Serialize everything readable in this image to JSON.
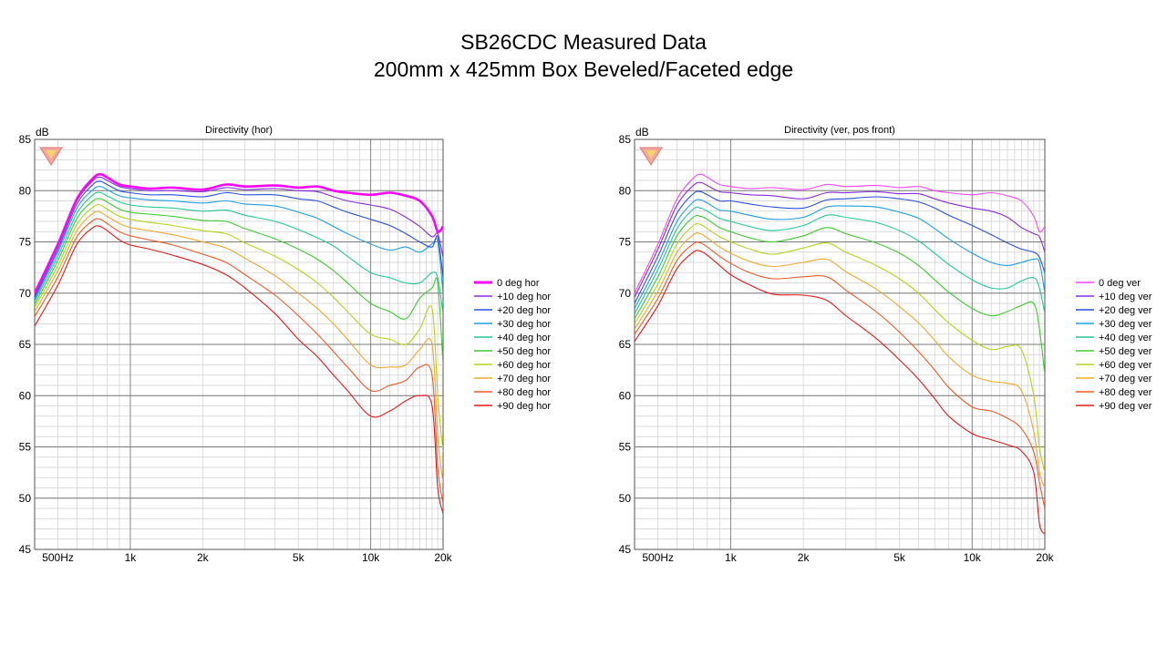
{
  "slide": {
    "title_line1": "SB26CDC Measured Data",
    "title_line2": "200mm x 425mm Box Beveled/Faceted  edge"
  },
  "chart_data": [
    {
      "type": "line",
      "title": "Directivity (hor)",
      "ylabel": "dB",
      "xscale": "log",
      "xlim": [
        400,
        20000
      ],
      "ylim": [
        45,
        85
      ],
      "x_tick_labels": [
        "500Hz",
        "1k",
        "2k",
        "5k",
        "10k",
        "20k"
      ],
      "x_tick_values": [
        500,
        1000,
        2000,
        5000,
        10000,
        20000
      ],
      "y_tick_labels": [
        "85",
        "80",
        "75",
        "70",
        "65",
        "60",
        "55",
        "50",
        "45"
      ],
      "y_tick_values": [
        85,
        80,
        75,
        70,
        65,
        60,
        55,
        50,
        45
      ],
      "grid": true,
      "legend_position": "right",
      "x": [
        400,
        500,
        600,
        700,
        750,
        800,
        900,
        1000,
        1200,
        1500,
        2000,
        2500,
        3000,
        4000,
        5000,
        6000,
        7000,
        8000,
        10000,
        12000,
        14000,
        16000,
        18000,
        19000,
        20000
      ],
      "series": [
        {
          "name": "0 deg hor",
          "color": "#ff00ff",
          "values": [
            70.0,
            74.8,
            79.2,
            81.2,
            81.6,
            81.3,
            80.6,
            80.4,
            80.2,
            80.3,
            80.1,
            80.6,
            80.4,
            80.5,
            80.3,
            80.4,
            80.0,
            79.8,
            79.6,
            79.8,
            79.5,
            79.0,
            77.5,
            76.0,
            76.5
          ]
        },
        {
          "name": "+10 deg hor",
          "color": "#8a2be2",
          "values": [
            69.8,
            74.6,
            79.0,
            81.0,
            81.3,
            81.0,
            80.4,
            80.2,
            80.0,
            80.0,
            79.9,
            80.3,
            80.1,
            80.2,
            80.0,
            79.9,
            79.4,
            79.0,
            78.6,
            78.2,
            77.4,
            76.5,
            75.5,
            75.8,
            73.5
          ]
        },
        {
          "name": "+20 deg hor",
          "color": "#2a50e0",
          "values": [
            69.6,
            74.3,
            78.7,
            80.6,
            80.9,
            80.6,
            80.0,
            79.8,
            79.6,
            79.6,
            79.4,
            79.8,
            79.6,
            79.6,
            79.2,
            79.0,
            78.4,
            77.9,
            77.2,
            76.6,
            75.8,
            75.0,
            74.5,
            75.5,
            71.5
          ]
        },
        {
          "name": "+30 deg hor",
          "color": "#1e9fe6",
          "values": [
            69.4,
            74.0,
            78.3,
            80.1,
            80.4,
            80.1,
            79.5,
            79.3,
            79.1,
            79.0,
            78.8,
            79.0,
            78.7,
            78.5,
            77.9,
            77.3,
            76.5,
            75.8,
            74.8,
            74.2,
            74.5,
            74.0,
            74.8,
            75.0,
            70.0
          ]
        },
        {
          "name": "+40 deg hor",
          "color": "#22c996",
          "values": [
            69.2,
            73.6,
            77.8,
            79.6,
            79.8,
            79.5,
            78.9,
            78.6,
            78.4,
            78.3,
            78.0,
            78.1,
            77.6,
            77.0,
            76.2,
            75.4,
            74.6,
            73.6,
            72.0,
            71.5,
            71.0,
            71.0,
            72.0,
            71.5,
            68.0
          ]
        },
        {
          "name": "+50 deg hor",
          "color": "#3dcc2e",
          "values": [
            68.9,
            73.2,
            77.3,
            79.0,
            79.2,
            78.9,
            78.2,
            77.9,
            77.7,
            77.5,
            77.1,
            77.0,
            76.3,
            75.3,
            74.3,
            73.3,
            72.2,
            71.0,
            69.0,
            68.2,
            67.5,
            69.5,
            70.5,
            71.0,
            63.0
          ]
        },
        {
          "name": "+60 deg hor",
          "color": "#b3d41a",
          "values": [
            68.6,
            72.7,
            76.7,
            78.4,
            78.6,
            78.2,
            77.5,
            77.2,
            76.9,
            76.6,
            76.1,
            75.8,
            74.9,
            73.6,
            72.3,
            71.0,
            69.6,
            68.2,
            66.0,
            65.5,
            65.0,
            66.5,
            68.5,
            60.0,
            54.5
          ]
        },
        {
          "name": "+70 deg hor",
          "color": "#f0a830",
          "values": [
            68.2,
            72.2,
            76.1,
            77.8,
            77.9,
            77.5,
            76.8,
            76.4,
            76.1,
            75.7,
            75.0,
            74.4,
            73.4,
            71.7,
            70.0,
            68.5,
            67.0,
            65.5,
            63.0,
            62.8,
            63.0,
            64.5,
            65.0,
            56.0,
            51.5
          ]
        },
        {
          "name": "+80 deg hor",
          "color": "#f05a28",
          "values": [
            67.7,
            71.6,
            75.5,
            77.1,
            77.2,
            76.8,
            76.0,
            75.6,
            75.2,
            74.7,
            73.8,
            73.0,
            71.8,
            69.8,
            67.8,
            66.0,
            64.3,
            62.8,
            60.5,
            61.0,
            61.5,
            62.8,
            62.0,
            53.0,
            49.5
          ]
        },
        {
          "name": "+90 deg hor",
          "color": "#e81818",
          "values": [
            66.8,
            70.8,
            74.8,
            76.4,
            76.5,
            76.1,
            75.2,
            74.7,
            74.3,
            73.7,
            72.8,
            71.8,
            70.5,
            68.0,
            65.5,
            63.8,
            62.0,
            60.5,
            58.0,
            58.5,
            59.5,
            60.0,
            59.0,
            51.0,
            48.5
          ]
        }
      ]
    },
    {
      "type": "line",
      "title": "Directivity (ver, pos front)",
      "ylabel": "dB",
      "xscale": "log",
      "xlim": [
        400,
        20000
      ],
      "ylim": [
        45,
        85
      ],
      "x_tick_labels": [
        "500Hz",
        "1k",
        "2k",
        "5k",
        "10k",
        "20k"
      ],
      "x_tick_values": [
        500,
        1000,
        2000,
        5000,
        10000,
        20000
      ],
      "y_tick_labels": [
        "85",
        "80",
        "75",
        "70",
        "65",
        "60",
        "55",
        "50",
        "45"
      ],
      "y_tick_values": [
        85,
        80,
        75,
        70,
        65,
        60,
        55,
        50,
        45
      ],
      "grid": true,
      "legend_position": "right",
      "x": [
        400,
        500,
        600,
        700,
        750,
        800,
        900,
        1000,
        1200,
        1500,
        2000,
        2500,
        3000,
        4000,
        5000,
        6000,
        7000,
        8000,
        10000,
        12000,
        14000,
        16000,
        18000,
        19000,
        20000
      ],
      "series": [
        {
          "name": "0 deg ver",
          "color": "#ff44ff",
          "values": [
            70.0,
            74.8,
            79.2,
            81.2,
            81.6,
            81.3,
            80.6,
            80.4,
            80.2,
            80.3,
            80.1,
            80.6,
            80.4,
            80.5,
            80.3,
            80.4,
            80.0,
            79.8,
            79.6,
            79.8,
            79.5,
            79.0,
            77.5,
            76.0,
            76.5
          ]
        },
        {
          "name": "+10 deg ver",
          "color": "#8a2be2",
          "values": [
            69.6,
            74.3,
            78.6,
            80.5,
            80.8,
            80.5,
            79.9,
            79.8,
            79.6,
            79.5,
            79.2,
            79.8,
            79.8,
            79.9,
            79.7,
            79.7,
            79.2,
            78.8,
            78.3,
            78.0,
            77.4,
            76.4,
            75.8,
            75.5,
            74.0
          ]
        },
        {
          "name": "+20 deg ver",
          "color": "#2a50e0",
          "values": [
            69.0,
            73.6,
            77.8,
            79.7,
            79.9,
            79.6,
            79.0,
            79.0,
            78.7,
            78.4,
            78.3,
            79.1,
            79.2,
            79.4,
            79.2,
            78.9,
            78.3,
            77.6,
            76.6,
            75.7,
            74.9,
            74.3,
            74.0,
            73.5,
            72.0
          ]
        },
        {
          "name": "+30 deg ver",
          "color": "#1e9fe6",
          "values": [
            68.5,
            72.9,
            77.0,
            78.9,
            79.1,
            78.8,
            78.1,
            78.0,
            77.6,
            77.2,
            77.4,
            78.4,
            78.5,
            78.4,
            77.9,
            77.3,
            76.3,
            75.3,
            73.9,
            73.0,
            72.7,
            73.0,
            73.3,
            73.0,
            70.0
          ]
        },
        {
          "name": "+40 deg ver",
          "color": "#22c996",
          "values": [
            68.0,
            72.3,
            76.3,
            78.2,
            78.3,
            78.0,
            77.3,
            77.0,
            76.5,
            76.1,
            76.6,
            77.6,
            77.4,
            76.9,
            76.1,
            75.1,
            73.9,
            72.8,
            71.3,
            70.5,
            70.5,
            71.2,
            71.5,
            70.5,
            68.0
          ]
        },
        {
          "name": "+50 deg ver",
          "color": "#3dcc2e",
          "values": [
            67.5,
            71.6,
            75.6,
            77.4,
            77.5,
            77.2,
            76.4,
            76.0,
            75.4,
            75.0,
            75.6,
            76.4,
            75.8,
            74.9,
            73.9,
            72.7,
            71.3,
            70.1,
            68.5,
            67.8,
            68.2,
            68.8,
            69.0,
            66.5,
            62.0
          ]
        },
        {
          "name": "+60 deg ver",
          "color": "#b3d41a",
          "values": [
            67.0,
            70.9,
            74.8,
            76.6,
            76.7,
            76.3,
            75.5,
            75.0,
            74.3,
            73.8,
            74.4,
            74.9,
            74.0,
            72.7,
            71.4,
            70.0,
            68.4,
            67.1,
            65.4,
            64.5,
            64.8,
            64.5,
            60.0,
            55.0,
            52.5
          ]
        },
        {
          "name": "+70 deg ver",
          "color": "#f0a830",
          "values": [
            66.5,
            70.2,
            74.0,
            75.7,
            75.8,
            75.4,
            74.5,
            73.9,
            73.1,
            72.6,
            73.0,
            73.3,
            72.1,
            70.4,
            68.7,
            67.1,
            65.4,
            63.8,
            62.0,
            61.4,
            61.2,
            60.5,
            56.5,
            52.5,
            51.0
          ]
        },
        {
          "name": "+80 deg ver",
          "color": "#f05a28",
          "values": [
            66.0,
            69.5,
            73.2,
            74.8,
            74.9,
            74.5,
            73.6,
            72.9,
            72.0,
            71.4,
            71.6,
            71.6,
            70.3,
            68.2,
            66.2,
            64.3,
            62.5,
            60.8,
            58.9,
            58.5,
            57.8,
            56.8,
            54.5,
            51.5,
            49.0
          ]
        },
        {
          "name": "+90 deg ver",
          "color": "#e81818",
          "values": [
            65.3,
            68.8,
            72.4,
            74.0,
            74.1,
            73.7,
            72.7,
            71.8,
            70.8,
            69.9,
            69.8,
            69.3,
            67.8,
            65.6,
            63.5,
            61.6,
            59.7,
            58.0,
            56.3,
            55.7,
            55.2,
            54.6,
            52.5,
            47.5,
            46.5
          ]
        }
      ]
    }
  ]
}
